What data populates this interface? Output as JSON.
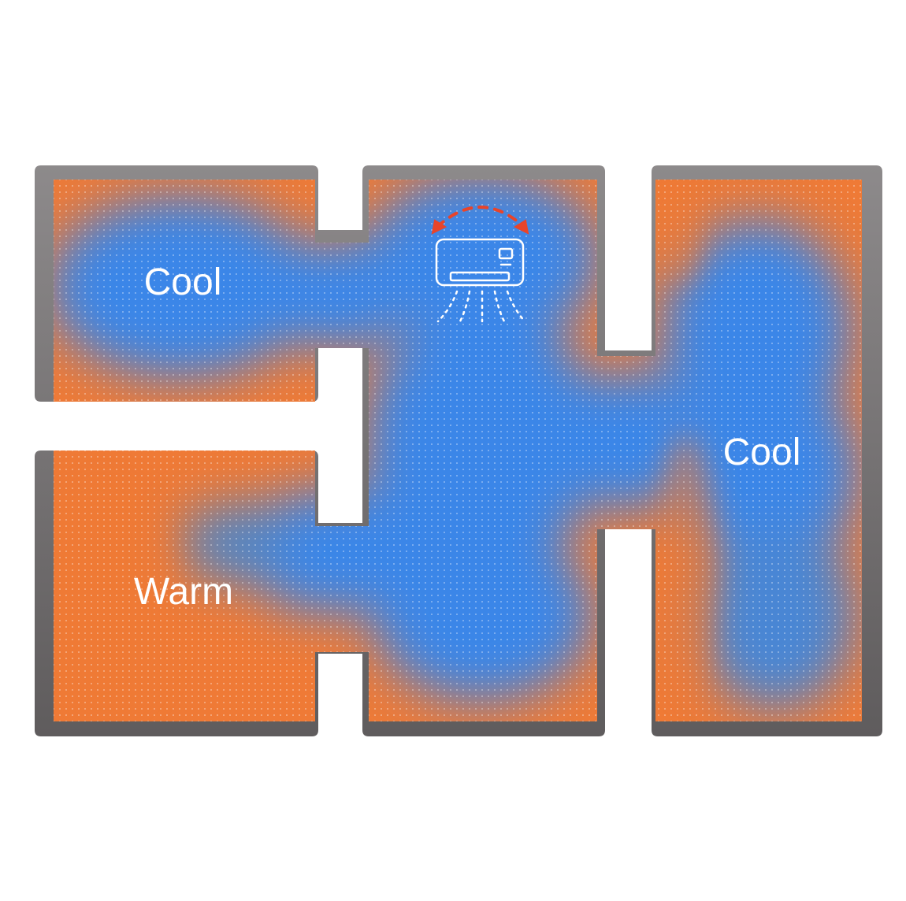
{
  "labels": {
    "top_left": "Cool",
    "right": "Cool",
    "bottom_left": "Warm"
  },
  "colors": {
    "cool": "#3a86e8",
    "warm": "#ef7a36",
    "wall": "#6a6768",
    "arrow": "#e8442a",
    "icon": "#ffffff"
  },
  "icons": {
    "ac_unit": "air-conditioner-icon",
    "swing": "swing-direction-arrows-icon"
  }
}
